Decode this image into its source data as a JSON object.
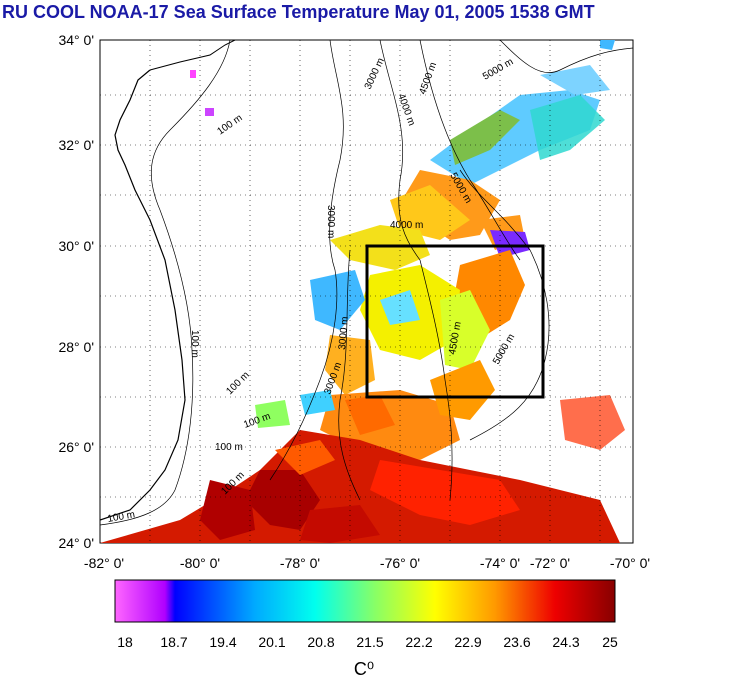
{
  "title": "RU COOL  NOAA-17 Sea Surface Temperature May 01, 2005 1538 GMT",
  "lat_labels": [
    "34° 0'",
    "32° 0'",
    "30° 0'",
    "28° 0'",
    "26° 0'",
    "24° 0'"
  ],
  "lon_labels": [
    "-82° 0'",
    "-80° 0'",
    "-78° 0'",
    "-76° 0'",
    "-74° 0'",
    "-72° 0'",
    "-70° 0'"
  ],
  "contour_labels": [
    "100 m",
    "100 m",
    "100 m",
    "100 m",
    "100 m",
    "100 m",
    "100 m",
    "3000 m",
    "3000 m",
    "3000 m",
    "4000 m",
    "4500 m",
    "5000 m",
    "5000 m",
    "5000 m",
    "4500 m",
    "4000 m",
    "3000 m"
  ],
  "colorbar": {
    "ticks": [
      "18",
      "18.7",
      "19.4",
      "20.1",
      "20.8",
      "21.5",
      "22.2",
      "22.9",
      "23.6",
      "24.3",
      "25"
    ],
    "unit": "C⁰",
    "min": 18,
    "max": 25
  },
  "colors": {
    "title": "#1a1aa6",
    "box": "#000000"
  }
}
